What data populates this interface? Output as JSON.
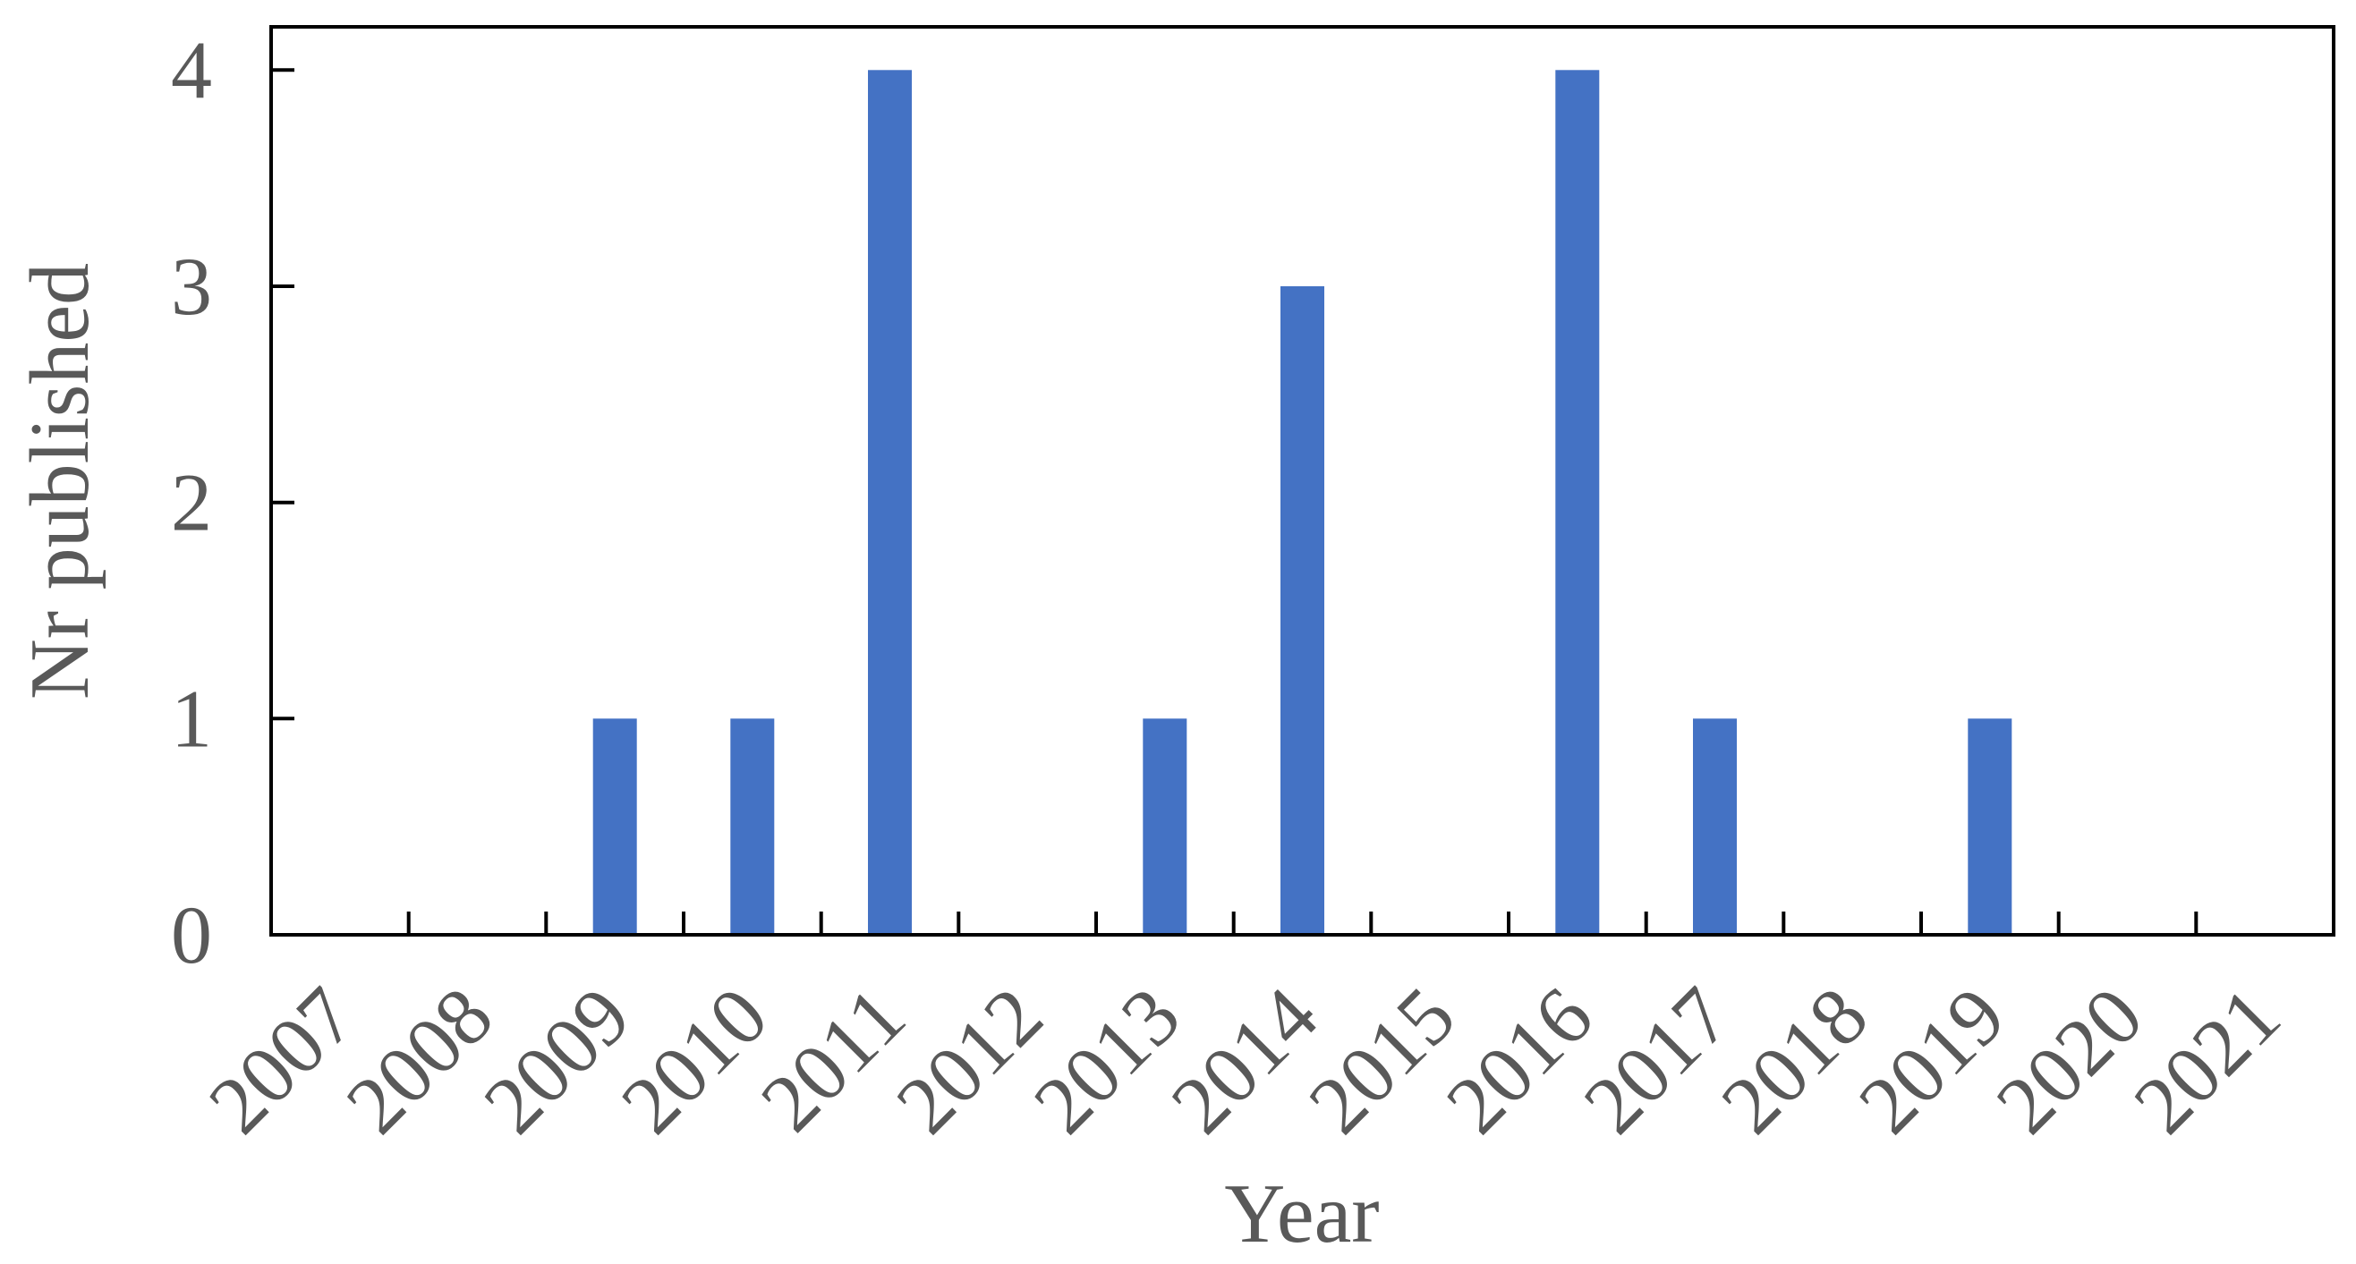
{
  "figure": {
    "background_color": "#ffffff"
  },
  "chart_data": {
    "type": "bar",
    "title": "",
    "xlabel": "Year",
    "ylabel": "Nr published",
    "categories": [
      "2007",
      "2008",
      "2009",
      "2010",
      "2011",
      "2012",
      "2013",
      "2014",
      "2015",
      "2016",
      "2017",
      "2018",
      "2019",
      "2020",
      "2021"
    ],
    "values": [
      0,
      0,
      1,
      1,
      4,
      0,
      1,
      3,
      0,
      4,
      1,
      0,
      1,
      0,
      0
    ],
    "yticks": [
      0,
      1,
      2,
      3,
      4
    ],
    "ylim": [
      0,
      4.2
    ],
    "grid": "off",
    "legend": "none",
    "x_tick_label_rotation_deg": -45,
    "tick_direction": "inside",
    "bar_color": "#4472C4",
    "axis_color": "#000000",
    "label_color": "#595959"
  }
}
